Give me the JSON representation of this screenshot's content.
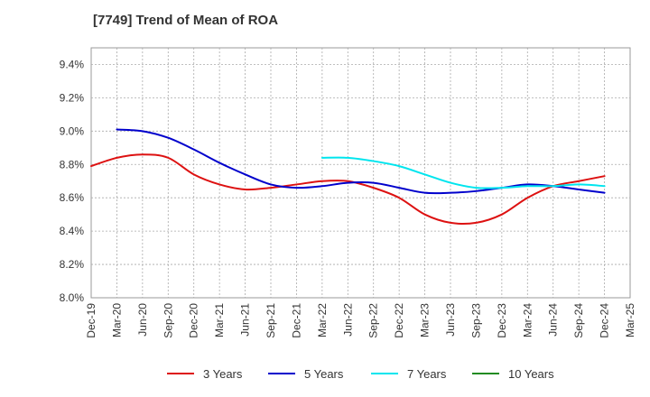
{
  "title": "[7749]  Trend of Mean of ROA",
  "chart_data": {
    "type": "line",
    "title": "[7749]  Trend of Mean of ROA",
    "xlabel": "",
    "ylabel": "",
    "x": [
      "Dec-19",
      "Mar-20",
      "Jun-20",
      "Sep-20",
      "Dec-20",
      "Mar-21",
      "Jun-21",
      "Sep-21",
      "Dec-21",
      "Mar-22",
      "Jun-22",
      "Sep-22",
      "Dec-22",
      "Mar-23",
      "Jun-23",
      "Sep-23",
      "Dec-23",
      "Mar-24",
      "Jun-24",
      "Sep-24",
      "Dec-24",
      "Mar-25"
    ],
    "ylim": [
      8.0,
      9.5
    ],
    "yticks": [
      8.0,
      8.2,
      8.4,
      8.6,
      8.8,
      9.0,
      9.2,
      9.4
    ],
    "ytick_labels": [
      "8.0%",
      "8.2%",
      "8.4%",
      "8.6%",
      "8.8%",
      "9.0%",
      "9.2%",
      "9.4%"
    ],
    "grid": true,
    "legend_position": "bottom",
    "series": [
      {
        "name": "3 Years",
        "color": "#dd1111",
        "values": [
          8.79,
          8.84,
          8.86,
          8.84,
          8.74,
          8.68,
          8.65,
          8.66,
          8.68,
          8.7,
          8.7,
          8.66,
          8.6,
          8.5,
          8.45,
          8.45,
          8.5,
          8.6,
          8.67,
          8.7,
          8.73,
          null
        ]
      },
      {
        "name": "5 Years",
        "color": "#0000cc",
        "values": [
          null,
          9.01,
          9.0,
          8.96,
          8.89,
          8.81,
          8.74,
          8.68,
          8.66,
          8.67,
          8.69,
          8.69,
          8.66,
          8.63,
          8.63,
          8.64,
          8.66,
          8.68,
          8.67,
          8.65,
          8.63,
          null
        ]
      },
      {
        "name": "7 Years",
        "color": "#00e5ee",
        "values": [
          null,
          null,
          null,
          null,
          null,
          null,
          null,
          null,
          null,
          8.84,
          8.84,
          8.82,
          8.79,
          8.74,
          8.69,
          8.66,
          8.66,
          8.67,
          8.67,
          8.68,
          8.67,
          null
        ]
      },
      {
        "name": "10 Years",
        "color": "#228b22",
        "values": [
          null,
          null,
          null,
          null,
          null,
          null,
          null,
          null,
          null,
          null,
          null,
          null,
          null,
          null,
          null,
          null,
          null,
          null,
          null,
          null,
          null,
          null
        ]
      }
    ]
  }
}
